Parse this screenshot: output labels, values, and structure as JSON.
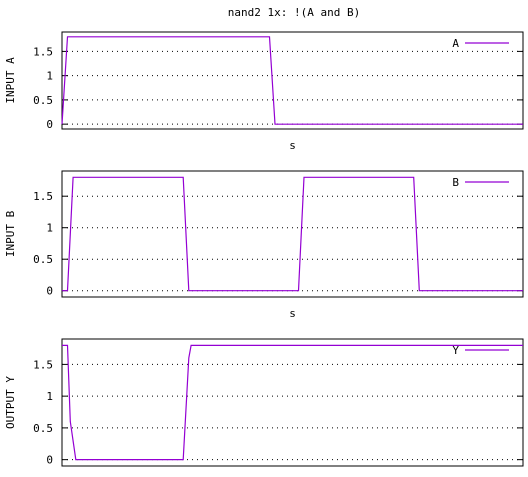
{
  "title": "nand2 1x: !(A and B)",
  "chart_data": [
    {
      "type": "line",
      "ylabel": "INPUT A",
      "xlabel": "s",
      "ylim": [
        -0.1,
        1.9
      ],
      "yticks": [
        0,
        0.5,
        1,
        1.5
      ],
      "ytick_labels": [
        "0",
        "0.5",
        "1",
        "1.5"
      ],
      "grid": true,
      "legend_position": "top-right",
      "series": [
        {
          "name": "A",
          "color": "#9400d3",
          "x": [
            0.0,
            0.012,
            0.45,
            0.462,
            1.0
          ],
          "y": [
            0.0,
            1.8,
            1.8,
            0.0,
            0.0
          ]
        }
      ]
    },
    {
      "type": "line",
      "ylabel": "INPUT B",
      "xlabel": "s",
      "ylim": [
        -0.1,
        1.9
      ],
      "yticks": [
        0,
        0.5,
        1,
        1.5
      ],
      "ytick_labels": [
        "0",
        "0.5",
        "1",
        "1.5"
      ],
      "grid": true,
      "legend_position": "top-right",
      "series": [
        {
          "name": "B",
          "color": "#9400d3",
          "x": [
            0.0,
            0.012,
            0.024,
            0.263,
            0.275,
            0.513,
            0.525,
            0.763,
            0.775,
            1.0
          ],
          "y": [
            0.0,
            0.0,
            1.8,
            1.8,
            0.0,
            0.0,
            1.8,
            1.8,
            0.0,
            0.0
          ]
        }
      ]
    },
    {
      "type": "line",
      "ylabel": "OUTPUT Y",
      "xlabel": "",
      "ylim": [
        -0.1,
        1.9
      ],
      "yticks": [
        0,
        0.5,
        1,
        1.5
      ],
      "ytick_labels": [
        "0",
        "0.5",
        "1",
        "1.5"
      ],
      "grid": true,
      "legend_position": "top-right",
      "series": [
        {
          "name": "Y",
          "color": "#9400d3",
          "x": [
            0.0,
            0.012,
            0.018,
            0.03,
            0.263,
            0.275,
            0.28,
            1.0
          ],
          "y": [
            1.8,
            1.8,
            0.6,
            0.0,
            0.0,
            1.6,
            1.8,
            1.8
          ]
        }
      ]
    }
  ]
}
